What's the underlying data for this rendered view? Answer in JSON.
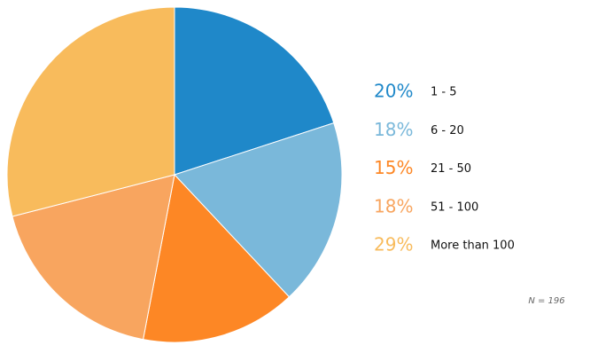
{
  "chart_data": {
    "type": "pie",
    "categories": [
      "1 - 5",
      "6 - 20",
      "21 - 50",
      "51 - 100",
      "More than 100"
    ],
    "values": [
      20,
      18,
      15,
      18,
      29
    ],
    "value_labels": [
      "20%",
      "18%",
      "15%",
      "18%",
      "29%"
    ],
    "colors": [
      "#1f88c9",
      "#7ab8da",
      "#fd8725",
      "#f8a55f",
      "#f8bb5c"
    ],
    "note": "N = 196"
  }
}
